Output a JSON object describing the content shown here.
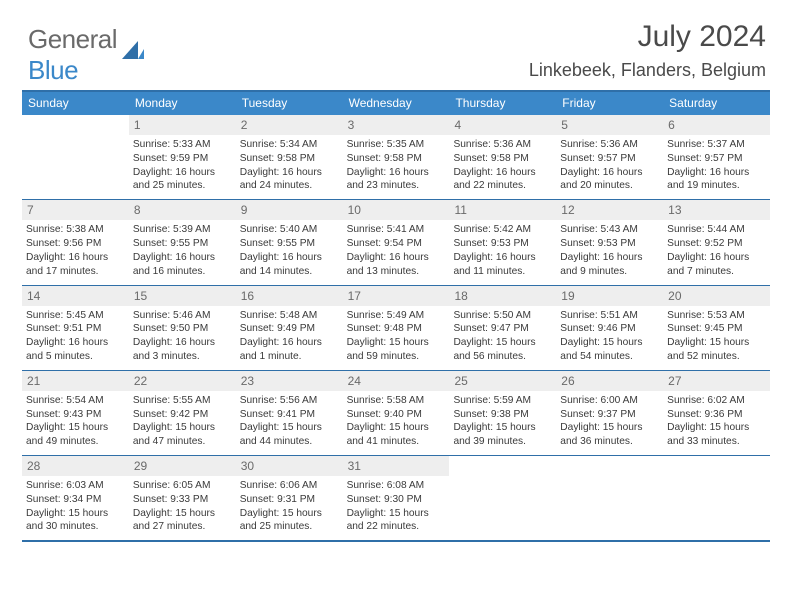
{
  "header": {
    "logo_general": "General",
    "logo_blue": "Blue",
    "month_year": "July 2024",
    "location": "Linkebeek, Flanders, Belgium"
  },
  "colors": {
    "header_bar": "#3b88c9",
    "border": "#2f6fa8",
    "daynum_bg": "#eeeeee",
    "text": "#3a3a3a",
    "muted": "#6a6a6a"
  },
  "dow": [
    "Sunday",
    "Monday",
    "Tuesday",
    "Wednesday",
    "Thursday",
    "Friday",
    "Saturday"
  ],
  "weeks": [
    [
      {
        "n": "",
        "sunrise": "",
        "sunset": "",
        "daylight": ""
      },
      {
        "n": "1",
        "sunrise": "Sunrise: 5:33 AM",
        "sunset": "Sunset: 9:59 PM",
        "daylight": "Daylight: 16 hours and 25 minutes."
      },
      {
        "n": "2",
        "sunrise": "Sunrise: 5:34 AM",
        "sunset": "Sunset: 9:58 PM",
        "daylight": "Daylight: 16 hours and 24 minutes."
      },
      {
        "n": "3",
        "sunrise": "Sunrise: 5:35 AM",
        "sunset": "Sunset: 9:58 PM",
        "daylight": "Daylight: 16 hours and 23 minutes."
      },
      {
        "n": "4",
        "sunrise": "Sunrise: 5:36 AM",
        "sunset": "Sunset: 9:58 PM",
        "daylight": "Daylight: 16 hours and 22 minutes."
      },
      {
        "n": "5",
        "sunrise": "Sunrise: 5:36 AM",
        "sunset": "Sunset: 9:57 PM",
        "daylight": "Daylight: 16 hours and 20 minutes."
      },
      {
        "n": "6",
        "sunrise": "Sunrise: 5:37 AM",
        "sunset": "Sunset: 9:57 PM",
        "daylight": "Daylight: 16 hours and 19 minutes."
      }
    ],
    [
      {
        "n": "7",
        "sunrise": "Sunrise: 5:38 AM",
        "sunset": "Sunset: 9:56 PM",
        "daylight": "Daylight: 16 hours and 17 minutes."
      },
      {
        "n": "8",
        "sunrise": "Sunrise: 5:39 AM",
        "sunset": "Sunset: 9:55 PM",
        "daylight": "Daylight: 16 hours and 16 minutes."
      },
      {
        "n": "9",
        "sunrise": "Sunrise: 5:40 AM",
        "sunset": "Sunset: 9:55 PM",
        "daylight": "Daylight: 16 hours and 14 minutes."
      },
      {
        "n": "10",
        "sunrise": "Sunrise: 5:41 AM",
        "sunset": "Sunset: 9:54 PM",
        "daylight": "Daylight: 16 hours and 13 minutes."
      },
      {
        "n": "11",
        "sunrise": "Sunrise: 5:42 AM",
        "sunset": "Sunset: 9:53 PM",
        "daylight": "Daylight: 16 hours and 11 minutes."
      },
      {
        "n": "12",
        "sunrise": "Sunrise: 5:43 AM",
        "sunset": "Sunset: 9:53 PM",
        "daylight": "Daylight: 16 hours and 9 minutes."
      },
      {
        "n": "13",
        "sunrise": "Sunrise: 5:44 AM",
        "sunset": "Sunset: 9:52 PM",
        "daylight": "Daylight: 16 hours and 7 minutes."
      }
    ],
    [
      {
        "n": "14",
        "sunrise": "Sunrise: 5:45 AM",
        "sunset": "Sunset: 9:51 PM",
        "daylight": "Daylight: 16 hours and 5 minutes."
      },
      {
        "n": "15",
        "sunrise": "Sunrise: 5:46 AM",
        "sunset": "Sunset: 9:50 PM",
        "daylight": "Daylight: 16 hours and 3 minutes."
      },
      {
        "n": "16",
        "sunrise": "Sunrise: 5:48 AM",
        "sunset": "Sunset: 9:49 PM",
        "daylight": "Daylight: 16 hours and 1 minute."
      },
      {
        "n": "17",
        "sunrise": "Sunrise: 5:49 AM",
        "sunset": "Sunset: 9:48 PM",
        "daylight": "Daylight: 15 hours and 59 minutes."
      },
      {
        "n": "18",
        "sunrise": "Sunrise: 5:50 AM",
        "sunset": "Sunset: 9:47 PM",
        "daylight": "Daylight: 15 hours and 56 minutes."
      },
      {
        "n": "19",
        "sunrise": "Sunrise: 5:51 AM",
        "sunset": "Sunset: 9:46 PM",
        "daylight": "Daylight: 15 hours and 54 minutes."
      },
      {
        "n": "20",
        "sunrise": "Sunrise: 5:53 AM",
        "sunset": "Sunset: 9:45 PM",
        "daylight": "Daylight: 15 hours and 52 minutes."
      }
    ],
    [
      {
        "n": "21",
        "sunrise": "Sunrise: 5:54 AM",
        "sunset": "Sunset: 9:43 PM",
        "daylight": "Daylight: 15 hours and 49 minutes."
      },
      {
        "n": "22",
        "sunrise": "Sunrise: 5:55 AM",
        "sunset": "Sunset: 9:42 PM",
        "daylight": "Daylight: 15 hours and 47 minutes."
      },
      {
        "n": "23",
        "sunrise": "Sunrise: 5:56 AM",
        "sunset": "Sunset: 9:41 PM",
        "daylight": "Daylight: 15 hours and 44 minutes."
      },
      {
        "n": "24",
        "sunrise": "Sunrise: 5:58 AM",
        "sunset": "Sunset: 9:40 PM",
        "daylight": "Daylight: 15 hours and 41 minutes."
      },
      {
        "n": "25",
        "sunrise": "Sunrise: 5:59 AM",
        "sunset": "Sunset: 9:38 PM",
        "daylight": "Daylight: 15 hours and 39 minutes."
      },
      {
        "n": "26",
        "sunrise": "Sunrise: 6:00 AM",
        "sunset": "Sunset: 9:37 PM",
        "daylight": "Daylight: 15 hours and 36 minutes."
      },
      {
        "n": "27",
        "sunrise": "Sunrise: 6:02 AM",
        "sunset": "Sunset: 9:36 PM",
        "daylight": "Daylight: 15 hours and 33 minutes."
      }
    ],
    [
      {
        "n": "28",
        "sunrise": "Sunrise: 6:03 AM",
        "sunset": "Sunset: 9:34 PM",
        "daylight": "Daylight: 15 hours and 30 minutes."
      },
      {
        "n": "29",
        "sunrise": "Sunrise: 6:05 AM",
        "sunset": "Sunset: 9:33 PM",
        "daylight": "Daylight: 15 hours and 27 minutes."
      },
      {
        "n": "30",
        "sunrise": "Sunrise: 6:06 AM",
        "sunset": "Sunset: 9:31 PM",
        "daylight": "Daylight: 15 hours and 25 minutes."
      },
      {
        "n": "31",
        "sunrise": "Sunrise: 6:08 AM",
        "sunset": "Sunset: 9:30 PM",
        "daylight": "Daylight: 15 hours and 22 minutes."
      },
      {
        "n": "",
        "sunrise": "",
        "sunset": "",
        "daylight": ""
      },
      {
        "n": "",
        "sunrise": "",
        "sunset": "",
        "daylight": ""
      },
      {
        "n": "",
        "sunrise": "",
        "sunset": "",
        "daylight": ""
      }
    ]
  ]
}
